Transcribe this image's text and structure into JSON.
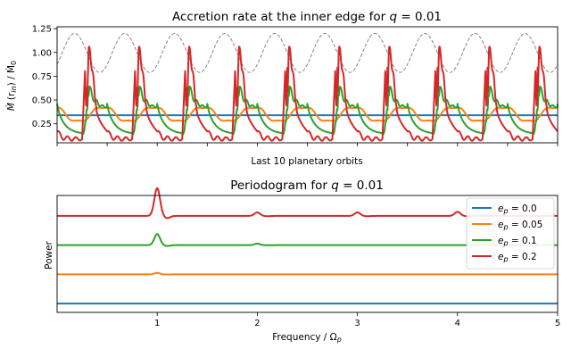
{
  "chart_data": [
    {
      "type": "line",
      "title_prefix": "Accretion rate at the inner edge for ",
      "title_var": "q",
      "title_value": " = 0.01",
      "xlabel": "Last 10 planetary orbits",
      "ylabel_main": "Ṁ",
      "ylabel_arg": "(r",
      "ylabel_sub": "in",
      "ylabel_rest": ") / Ṁ",
      "ylabel_sub2": "0",
      "xlim": [
        0,
        10
      ],
      "ylim": [
        0.05,
        1.27
      ],
      "yticks": [
        "0.25",
        "0.50",
        "0.75",
        "1.00",
        "1.25"
      ],
      "yticks_values": [
        0.25,
        0.5,
        0.75,
        1.0,
        1.25
      ],
      "n_orbits": 10,
      "series": [
        {
          "name": "e_p = 0.0",
          "color": "#1f77b4",
          "shape": "flat",
          "level": 0.34
        },
        {
          "name": "e_p = 0.05",
          "color": "#ff7f0e",
          "shape": "wave",
          "min": 0.27,
          "max": 0.43
        },
        {
          "name": "e_p = 0.1",
          "color": "#2ca02c",
          "shape": "decay",
          "min": 0.14,
          "peak": 0.64
        },
        {
          "name": "e_p = 0.2",
          "color": "#d62728",
          "shape": "spiky",
          "min": 0.09,
          "peak": 1.05
        },
        {
          "name": "reference",
          "color": "#888888",
          "shape": "dashed-sine",
          "min": 0.79,
          "max": 1.2
        }
      ]
    },
    {
      "type": "line",
      "title_prefix": "Periodogram for ",
      "title_var": "q",
      "title_value": " = 0.01",
      "xlabel_prefix": "Frequency / Ω",
      "xlabel_sub": "p",
      "ylabel": "Power",
      "xlim": [
        0,
        5
      ],
      "xticks": [
        "1",
        "2",
        "3",
        "4",
        "5"
      ],
      "xticks_values": [
        1,
        2,
        3,
        4,
        5
      ],
      "legend_location": "top-right",
      "series": [
        {
          "name": "e_p = 0.0",
          "label_var": "e",
          "label_sub": "p",
          "label_value": " = 0.0",
          "color": "#1f77b4",
          "offset": 0.0,
          "peaks": []
        },
        {
          "name": "e_p = 0.05",
          "label_var": "e",
          "label_sub": "p",
          "label_value": " = 0.05",
          "color": "#ff7f0e",
          "offset": 1.0,
          "peaks": [
            {
              "f": 1,
              "h": 0.05
            }
          ]
        },
        {
          "name": "e_p = 0.1",
          "label_var": "e",
          "label_sub": "p",
          "label_value": " = 0.1",
          "color": "#2ca02c",
          "offset": 2.0,
          "peaks": [
            {
              "f": 1,
              "h": 0.38
            },
            {
              "f": 2,
              "h": 0.05
            }
          ]
        },
        {
          "name": "e_p = 0.2",
          "label_var": "e",
          "label_sub": "p",
          "label_value": " = 0.2",
          "color": "#d62728",
          "offset": 3.0,
          "peaks": [
            {
              "f": 1,
              "h": 0.95
            },
            {
              "f": 2,
              "h": 0.12
            },
            {
              "f": 3,
              "h": 0.12
            },
            {
              "f": 4,
              "h": 0.14
            }
          ]
        }
      ]
    }
  ]
}
